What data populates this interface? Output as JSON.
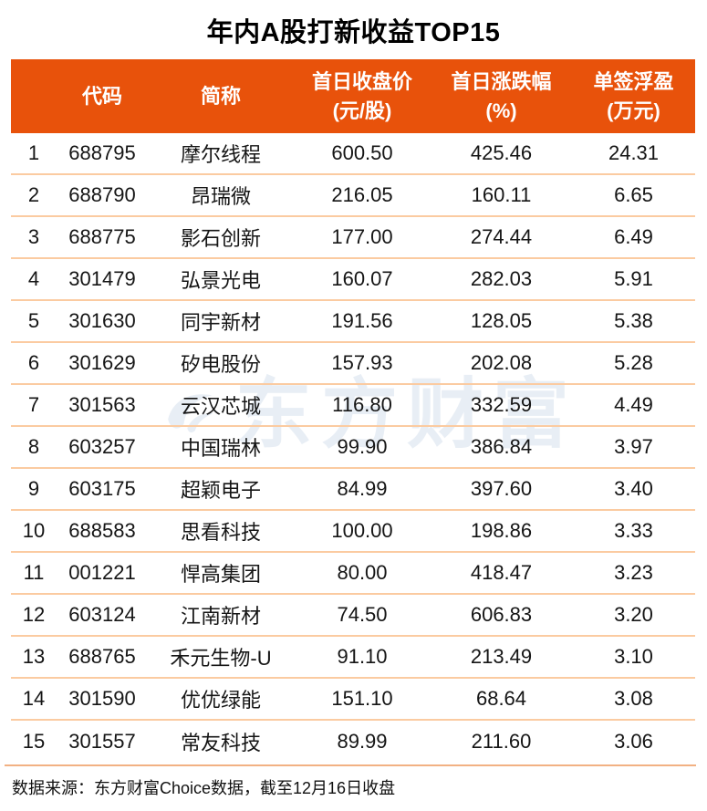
{
  "title": "年内A股打新收益TOP15",
  "header": {
    "rank": "",
    "code": "代码",
    "name": "简称",
    "price_l1": "首日收盘价",
    "price_l2": "(元/股)",
    "change_l1": "首日涨跌幅",
    "change_l2": "(%)",
    "profit_l1": "单签浮盈",
    "profit_l2": "(万元)"
  },
  "watermark": {
    "text": "东方财富"
  },
  "footer": {
    "text": "数据来源：东方财富Choice数据，截至12月16日收盘"
  },
  "colors": {
    "header_bg": "#E8520B",
    "separator": "#FBCBA1",
    "footer_line": "#F2B183",
    "watermark": "#E8EEF5"
  },
  "chart_data": {
    "type": "table",
    "title": "年内A股打新收益TOP15",
    "columns": [
      "",
      "代码",
      "简称",
      "首日收盘价(元/股)",
      "首日涨跌幅(%)",
      "单签浮盈(万元)"
    ],
    "rows": [
      [
        "1",
        "688795",
        "摩尔线程",
        "600.50",
        "425.46",
        "24.31"
      ],
      [
        "2",
        "688790",
        "昂瑞微",
        "216.05",
        "160.11",
        "6.65"
      ],
      [
        "3",
        "688775",
        "影石创新",
        "177.00",
        "274.44",
        "6.49"
      ],
      [
        "4",
        "301479",
        "弘景光电",
        "160.07",
        "282.03",
        "5.91"
      ],
      [
        "5",
        "301630",
        "同宇新材",
        "191.56",
        "128.05",
        "5.38"
      ],
      [
        "6",
        "301629",
        "矽电股份",
        "157.93",
        "202.08",
        "5.28"
      ],
      [
        "7",
        "301563",
        "云汉芯城",
        "116.80",
        "332.59",
        "4.49"
      ],
      [
        "8",
        "603257",
        "中国瑞林",
        "99.90",
        "386.84",
        "3.97"
      ],
      [
        "9",
        "603175",
        "超颖电子",
        "84.99",
        "397.60",
        "3.40"
      ],
      [
        "10",
        "688583",
        "思看科技",
        "100.00",
        "198.86",
        "3.33"
      ],
      [
        "11",
        "001221",
        "悍高集团",
        "80.00",
        "418.47",
        "3.23"
      ],
      [
        "12",
        "603124",
        "江南新材",
        "74.50",
        "606.83",
        "3.20"
      ],
      [
        "13",
        "688765",
        "禾元生物-U",
        "91.10",
        "213.49",
        "3.10"
      ],
      [
        "14",
        "301590",
        "优优绿能",
        "151.10",
        "68.64",
        "3.08"
      ],
      [
        "15",
        "301557",
        "常友科技",
        "89.99",
        "211.60",
        "3.06"
      ]
    ]
  }
}
